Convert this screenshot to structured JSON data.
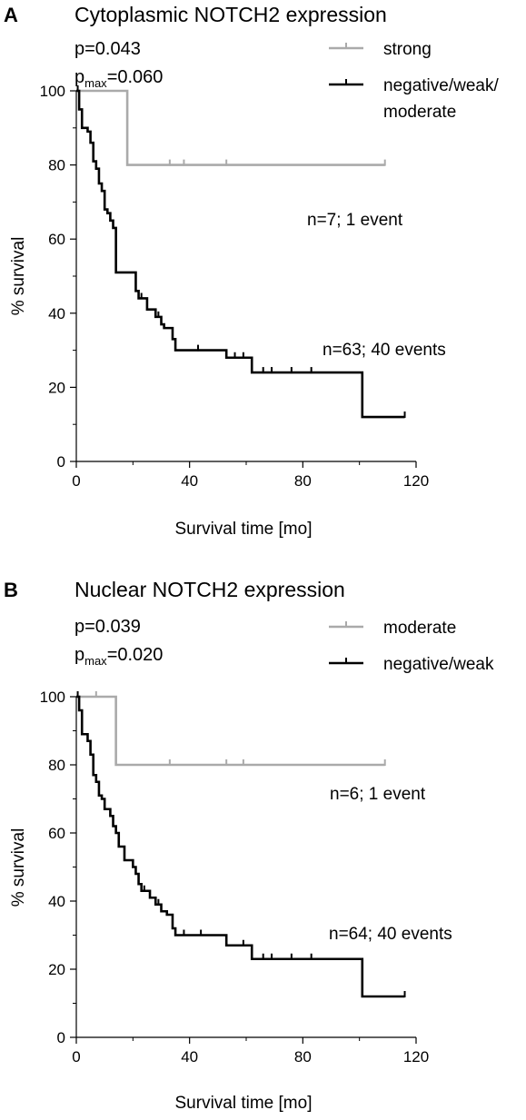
{
  "chart_data": [
    {
      "type": "line",
      "panel_label": "A",
      "title": "Cytoplasmic NOTCH2 expression",
      "stats": [
        {
          "label": "p",
          "sub": "",
          "value": "=0.043"
        },
        {
          "label": "p",
          "sub": "max",
          "value": "=0.060"
        }
      ],
      "xlabel": "Survival time [mo]",
      "ylabel": "% survival",
      "xlim": [
        0,
        120
      ],
      "ylim": [
        0,
        100
      ],
      "xticks": [
        0,
        40,
        80,
        120
      ],
      "yticks": [
        0,
        20,
        40,
        60,
        80,
        100
      ],
      "series": [
        {
          "name": "strong",
          "legend_lines": [
            "strong"
          ],
          "color": "#aaaaaa",
          "annotation": "n=7; 1 event",
          "steps": [
            [
              0,
              100
            ],
            [
              18,
              80
            ],
            [
              109,
              80
            ]
          ],
          "censor_x": [
            33,
            38,
            53,
            109
          ]
        },
        {
          "name": "negative/weak/ moderate",
          "legend_lines": [
            "negative/weak/",
            "moderate"
          ],
          "color": "#000000",
          "annotation": "n=63; 40 events",
          "steps": [
            [
              0,
              100
            ],
            [
              1,
              95
            ],
            [
              2,
              90
            ],
            [
              4,
              89
            ],
            [
              5,
              86
            ],
            [
              6,
              81
            ],
            [
              7,
              79
            ],
            [
              8,
              75
            ],
            [
              9,
              73
            ],
            [
              10,
              68
            ],
            [
              11,
              67
            ],
            [
              12,
              65
            ],
            [
              13,
              63
            ],
            [
              14,
              51
            ],
            [
              20,
              51
            ],
            [
              21,
              46
            ],
            [
              22,
              44
            ],
            [
              25,
              41
            ],
            [
              27,
              41
            ],
            [
              28,
              39
            ],
            [
              30,
              37
            ],
            [
              31,
              36
            ],
            [
              34,
              33
            ],
            [
              35,
              30
            ],
            [
              53,
              28
            ],
            [
              62,
              24
            ],
            [
              101,
              24
            ],
            [
              101,
              12
            ],
            [
              116,
              12
            ]
          ],
          "censor_x": [
            0.5,
            23,
            29,
            43,
            53,
            56,
            59,
            66,
            69,
            76,
            83,
            116
          ]
        }
      ]
    },
    {
      "type": "line",
      "panel_label": "B",
      "title": "Nuclear NOTCH2 expression",
      "stats": [
        {
          "label": "p",
          "sub": "",
          "value": "=0.039"
        },
        {
          "label": "p",
          "sub": "max",
          "value": "=0.020"
        }
      ],
      "xlabel": "Survival time [mo]",
      "ylabel": "% survival",
      "xlim": [
        0,
        120
      ],
      "ylim": [
        0,
        100
      ],
      "xticks": [
        0,
        40,
        80,
        120
      ],
      "yticks": [
        0,
        20,
        40,
        60,
        80,
        100
      ],
      "series": [
        {
          "name": "moderate",
          "legend_lines": [
            "moderate"
          ],
          "color": "#aaaaaa",
          "annotation": "n=6; 1 event",
          "steps": [
            [
              0,
              100
            ],
            [
              14,
              80
            ],
            [
              109,
              80
            ]
          ],
          "censor_x": [
            7,
            33,
            53,
            59,
            109
          ]
        },
        {
          "name": "negative/weak",
          "legend_lines": [
            "negative/weak"
          ],
          "color": "#000000",
          "annotation": "n=64; 40 events",
          "steps": [
            [
              0,
              100
            ],
            [
              1,
              96
            ],
            [
              2,
              89
            ],
            [
              4,
              87
            ],
            [
              5,
              83
            ],
            [
              6,
              77
            ],
            [
              7,
              75
            ],
            [
              8,
              71
            ],
            [
              9,
              70
            ],
            [
              10,
              67
            ],
            [
              12,
              65
            ],
            [
              13,
              62
            ],
            [
              14,
              60
            ],
            [
              15,
              56
            ],
            [
              17,
              52
            ],
            [
              20,
              50
            ],
            [
              21,
              48
            ],
            [
              22,
              45
            ],
            [
              23,
              43
            ],
            [
              26,
              41
            ],
            [
              28,
              39
            ],
            [
              30,
              37
            ],
            [
              32,
              36
            ],
            [
              34,
              32
            ],
            [
              35,
              30
            ],
            [
              53,
              27
            ],
            [
              62,
              23
            ],
            [
              101,
              23
            ],
            [
              101,
              12
            ],
            [
              116,
              12
            ]
          ],
          "censor_x": [
            0.5,
            24,
            29,
            38,
            44,
            53,
            59,
            66,
            69,
            76,
            83,
            116
          ]
        }
      ]
    }
  ]
}
